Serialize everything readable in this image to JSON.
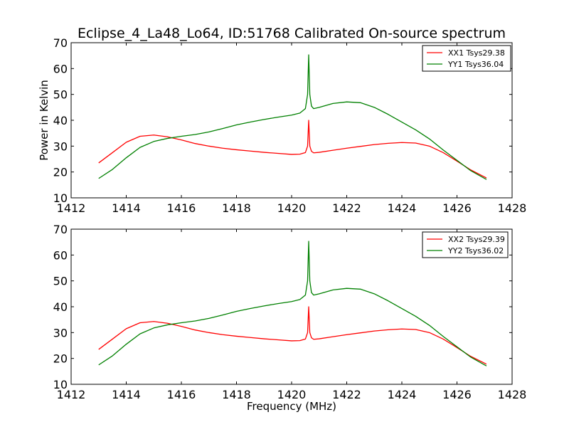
{
  "figure": {
    "title": "Eclipse_4_La48_Lo64, ID:51768 Calibrated On-source spectrum",
    "xlabel": "Frequency (MHz)",
    "ylabel": "Power in Kelvin"
  },
  "chart_data": [
    {
      "type": "line",
      "title": "Eclipse_4_La48_Lo64, ID:51768 Calibrated On-source spectrum",
      "xlabel": "",
      "ylabel": "Power in Kelvin",
      "xlim": [
        1412,
        1428
      ],
      "ylim": [
        10,
        70
      ],
      "xticks": [
        1412,
        1414,
        1416,
        1418,
        1420,
        1422,
        1424,
        1426,
        1428
      ],
      "yticks": [
        10,
        20,
        30,
        40,
        50,
        60,
        70
      ],
      "grid": false,
      "legend_position": "top-right",
      "series": [
        {
          "name": "XX1 Tsys29.38",
          "color": "#ff0000",
          "x": [
            1413.0,
            1413.5,
            1414.0,
            1414.5,
            1415.0,
            1415.5,
            1416.0,
            1416.5,
            1417.0,
            1417.5,
            1418.0,
            1418.5,
            1419.0,
            1419.5,
            1420.0,
            1420.3,
            1420.5,
            1420.58,
            1420.62,
            1420.66,
            1420.72,
            1420.8,
            1421.0,
            1421.5,
            1422.0,
            1422.5,
            1423.0,
            1423.5,
            1424.0,
            1424.5,
            1425.0,
            1425.5,
            1426.0,
            1426.5,
            1427.07
          ],
          "y": [
            23.5,
            27.5,
            31.5,
            33.8,
            34.3,
            33.6,
            32.4,
            31.0,
            30.0,
            29.2,
            28.6,
            28.1,
            27.6,
            27.2,
            26.8,
            26.9,
            27.5,
            30.0,
            40.0,
            30.0,
            28.0,
            27.4,
            27.6,
            28.4,
            29.2,
            29.9,
            30.6,
            31.1,
            31.4,
            31.2,
            30.0,
            27.5,
            24.2,
            20.8,
            17.7
          ]
        },
        {
          "name": "YY1 Tsys36.04",
          "color": "#008000",
          "x": [
            1413.0,
            1413.5,
            1414.0,
            1414.5,
            1415.0,
            1415.5,
            1416.0,
            1416.5,
            1417.0,
            1417.5,
            1418.0,
            1418.5,
            1419.0,
            1419.5,
            1420.0,
            1420.3,
            1420.5,
            1420.58,
            1420.62,
            1420.66,
            1420.72,
            1420.8,
            1421.0,
            1421.5,
            1422.0,
            1422.5,
            1423.0,
            1423.5,
            1424.0,
            1424.5,
            1425.0,
            1425.5,
            1426.0,
            1426.5,
            1427.07
          ],
          "y": [
            17.5,
            21.0,
            25.5,
            29.5,
            31.8,
            33.0,
            33.8,
            34.5,
            35.5,
            36.8,
            38.2,
            39.3,
            40.3,
            41.2,
            42.0,
            42.8,
            44.5,
            50.0,
            65.3,
            50.0,
            45.5,
            44.5,
            45.0,
            46.5,
            47.1,
            46.8,
            45.0,
            42.3,
            39.3,
            36.3,
            32.8,
            28.5,
            24.5,
            20.5,
            17.1
          ]
        }
      ]
    },
    {
      "type": "line",
      "title": "",
      "xlabel": "Frequency (MHz)",
      "ylabel": "",
      "xlim": [
        1412,
        1428
      ],
      "ylim": [
        10,
        70
      ],
      "xticks": [
        1412,
        1414,
        1416,
        1418,
        1420,
        1422,
        1424,
        1426,
        1428
      ],
      "yticks": [
        10,
        20,
        30,
        40,
        50,
        60,
        70
      ],
      "grid": false,
      "legend_position": "top-right",
      "series": [
        {
          "name": "XX2 Tsys29.39",
          "color": "#ff0000",
          "x": [
            1413.0,
            1413.5,
            1414.0,
            1414.5,
            1415.0,
            1415.5,
            1416.0,
            1416.5,
            1417.0,
            1417.5,
            1418.0,
            1418.5,
            1419.0,
            1419.5,
            1420.0,
            1420.3,
            1420.5,
            1420.58,
            1420.62,
            1420.66,
            1420.72,
            1420.8,
            1421.0,
            1421.5,
            1422.0,
            1422.5,
            1423.0,
            1423.5,
            1424.0,
            1424.5,
            1425.0,
            1425.5,
            1426.0,
            1426.5,
            1427.07
          ],
          "y": [
            23.5,
            27.5,
            31.5,
            33.8,
            34.3,
            33.6,
            32.4,
            31.0,
            30.0,
            29.2,
            28.6,
            28.1,
            27.6,
            27.2,
            26.8,
            26.9,
            27.5,
            30.0,
            40.0,
            30.0,
            28.0,
            27.4,
            27.6,
            28.4,
            29.2,
            29.9,
            30.6,
            31.1,
            31.4,
            31.2,
            30.0,
            27.5,
            24.2,
            20.8,
            17.8
          ]
        },
        {
          "name": "YY2 Tsys36.02",
          "color": "#008000",
          "x": [
            1413.0,
            1413.5,
            1414.0,
            1414.5,
            1415.0,
            1415.5,
            1416.0,
            1416.5,
            1417.0,
            1417.5,
            1418.0,
            1418.5,
            1419.0,
            1419.5,
            1420.0,
            1420.3,
            1420.5,
            1420.58,
            1420.62,
            1420.66,
            1420.72,
            1420.8,
            1421.0,
            1421.5,
            1422.0,
            1422.5,
            1423.0,
            1423.5,
            1424.0,
            1424.5,
            1425.0,
            1425.5,
            1426.0,
            1426.5,
            1427.07
          ],
          "y": [
            17.5,
            21.0,
            25.5,
            29.5,
            31.8,
            33.0,
            33.8,
            34.5,
            35.5,
            36.8,
            38.2,
            39.3,
            40.3,
            41.2,
            42.0,
            42.8,
            44.5,
            50.0,
            65.3,
            50.0,
            45.5,
            44.5,
            45.0,
            46.5,
            47.1,
            46.8,
            45.0,
            42.3,
            39.3,
            36.3,
            32.8,
            28.5,
            24.5,
            20.5,
            17.1
          ]
        }
      ]
    }
  ]
}
